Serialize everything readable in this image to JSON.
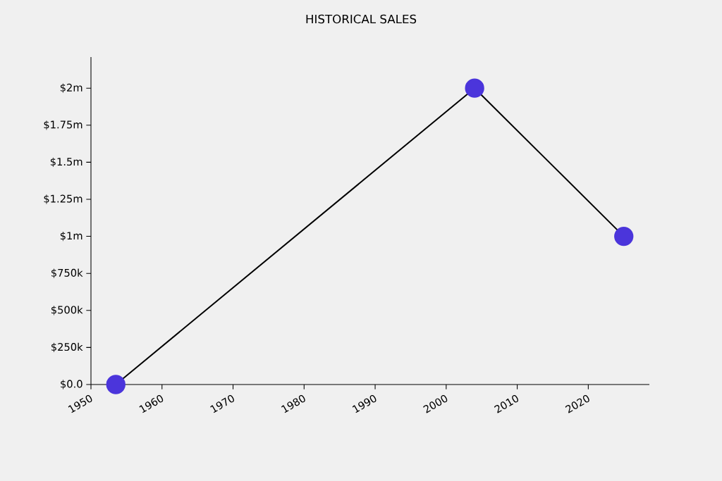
{
  "chart_data": {
    "type": "line",
    "title": "HISTORICAL SALES",
    "x": [
      1953.5,
      2004,
      2025
    ],
    "series": [
      {
        "color": "#4b35db",
        "values": [
          0,
          2000000,
          1000000
        ]
      }
    ],
    "marker": "circle",
    "xlim": [
      1950,
      2028.6
    ],
    "ylim": [
      0,
      2210000
    ],
    "xticks": [
      1950,
      1960,
      1970,
      1980,
      1990,
      2000,
      2010,
      2020
    ],
    "yticks": [
      {
        "value": 0,
        "label": "$0.0"
      },
      {
        "value": 250000,
        "label": "$250k"
      },
      {
        "value": 500000,
        "label": "$500k"
      },
      {
        "value": 750000,
        "label": "$750k"
      },
      {
        "value": 1000000,
        "label": "$1m"
      },
      {
        "value": 1250000,
        "label": "$1.25m"
      },
      {
        "value": 1500000,
        "label": "$1.5m"
      },
      {
        "value": 1750000,
        "label": "$1.75m"
      },
      {
        "value": 2000000,
        "label": "$2m"
      }
    ]
  }
}
